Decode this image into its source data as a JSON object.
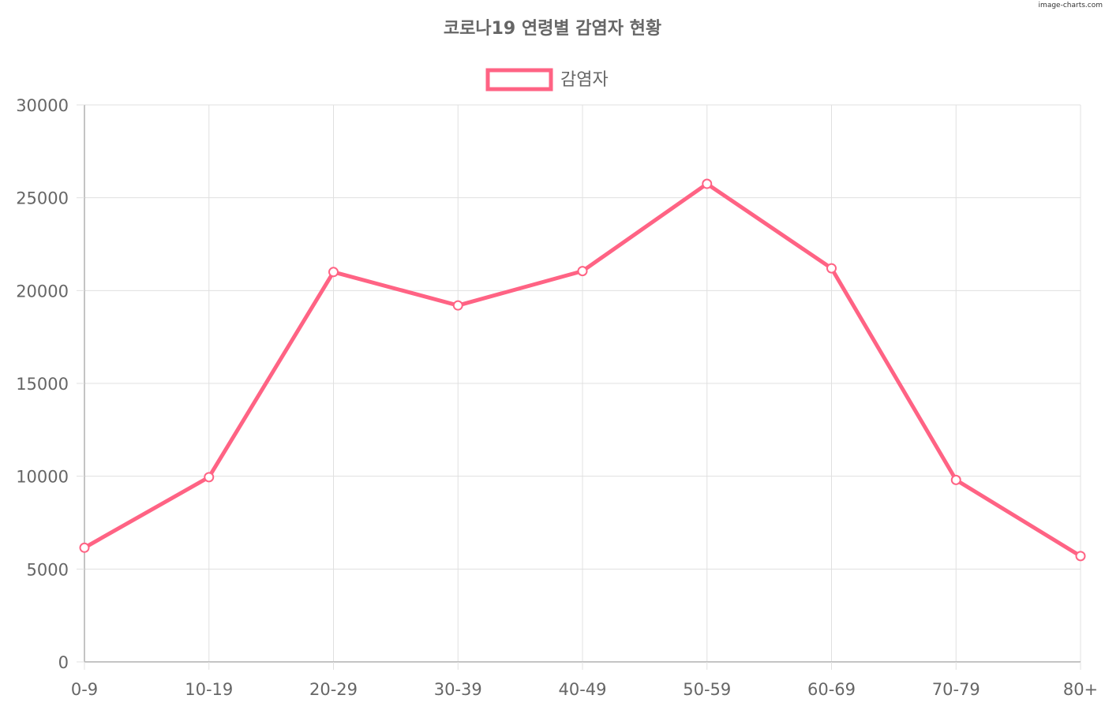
{
  "watermark": "image-charts.com",
  "chart_data": {
    "type": "line",
    "title": "코로나19 연령별 감염자 현황",
    "categories": [
      "0-9",
      "10-19",
      "20-29",
      "30-39",
      "40-49",
      "50-59",
      "60-69",
      "70-79",
      "80+"
    ],
    "series": [
      {
        "name": "감염자",
        "values": [
          6150,
          9950,
          21000,
          19200,
          21050,
          25750,
          21200,
          9800,
          5700
        ],
        "color": "#ff6384"
      }
    ],
    "ylim": [
      0,
      30000
    ],
    "yticks": [
      0,
      5000,
      10000,
      15000,
      20000,
      25000,
      30000
    ],
    "grid": true,
    "legend_position": "top"
  }
}
